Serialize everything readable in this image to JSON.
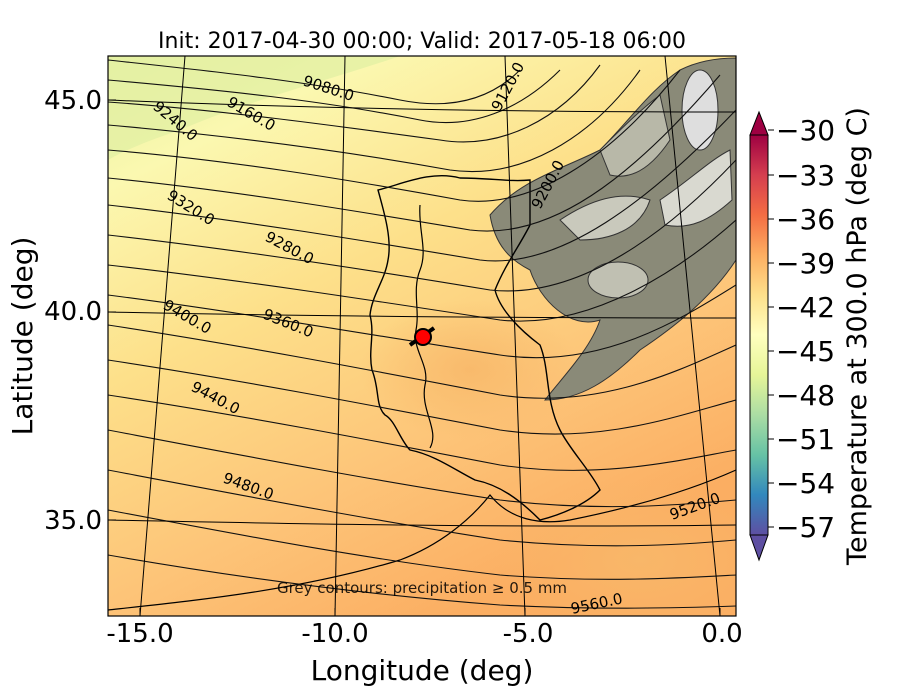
{
  "title": "Init: 2017-04-30 00:00; Valid: 2017-05-18 06:00",
  "axes": {
    "xlabel": "Longitude (deg)",
    "ylabel": "Latitude (deg)",
    "x_ticks": [
      "-15.0",
      "-10.0",
      "-5.0",
      "0.0"
    ],
    "y_ticks": [
      "45.0",
      "40.0",
      "35.0"
    ]
  },
  "annotation": "Grey contours: precipitation ≥ 0.5 mm",
  "contour_labels": [
    "9080.0",
    "9120.0",
    "9160.0",
    "9200.0",
    "9240.0",
    "9280.0",
    "9320.0",
    "9360.0",
    "9400.0",
    "9440.0",
    "9480.0",
    "9520.0",
    "9560.0"
  ],
  "colorbar": {
    "label": "Temperature at 300.0 hPa (deg C)",
    "ticks": [
      "−30",
      "−33",
      "−36",
      "−39",
      "−42",
      "−45",
      "−48",
      "−51",
      "−54",
      "−57"
    ],
    "colormap": "Spectral",
    "extend": "both"
  },
  "marker": {
    "type": "red-circle",
    "color": "#ff0000",
    "lon": -7.6,
    "lat": 39.3
  },
  "chart_data": {
    "type": "heatmap",
    "map_region": "Iberian Peninsula",
    "x_range": [
      -16.0,
      0.3
    ],
    "y_range": [
      32.8,
      46.0
    ],
    "contours_geopotential_height": [
      9080,
      9120,
      9160,
      9200,
      9240,
      9280,
      9320,
      9360,
      9400,
      9440,
      9480,
      9520,
      9560
    ],
    "colorbar_range": [
      -57,
      -30
    ]
  }
}
